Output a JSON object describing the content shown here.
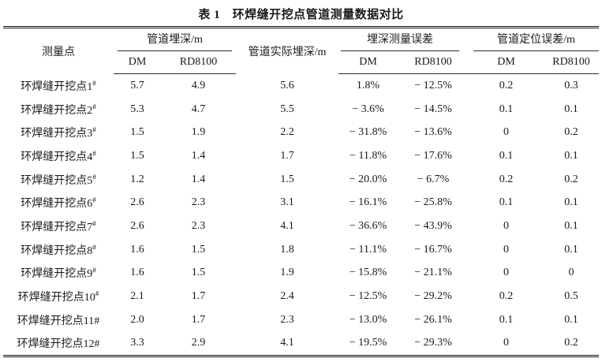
{
  "title": "表 1　环焊缝开挖点管道测量数据对比",
  "table": {
    "header": {
      "point": "测量点",
      "actual": "管道实际埋深/m",
      "groups": [
        "管道埋深/m",
        "埋深测量误差",
        "管道定位误差/m"
      ],
      "sub": [
        "DM",
        "RD8100",
        "DM",
        "RD8100",
        "DM",
        "RD8100"
      ]
    },
    "rows": [
      {
        "point": "环焊缝开挖点1",
        "mark": "#",
        "sup": true,
        "values": [
          "5.7",
          "4.9",
          "5.6",
          "1.8%",
          "− 12.5%",
          "0.2",
          "0.3"
        ]
      },
      {
        "point": "环焊缝开挖点2",
        "mark": "#",
        "sup": true,
        "values": [
          "5.3",
          "4.7",
          "5.5",
          "− 3.6%",
          "− 14.5%",
          "0.1",
          "0.1"
        ]
      },
      {
        "point": "环焊缝开挖点3",
        "mark": "#",
        "sup": true,
        "values": [
          "1.5",
          "1.9",
          "2.2",
          "− 31.8%",
          "− 13.6%",
          "0",
          "0.2"
        ]
      },
      {
        "point": "环焊缝开挖点4",
        "mark": "#",
        "sup": true,
        "values": [
          "1.5",
          "1.4",
          "1.7",
          "− 11.8%",
          "− 17.6%",
          "0.1",
          "0.1"
        ]
      },
      {
        "point": "环焊缝开挖点5",
        "mark": "#",
        "sup": true,
        "values": [
          "1.2",
          "1.4",
          "1.5",
          "− 20.0%",
          "− 6.7%",
          "0.2",
          "0.2"
        ]
      },
      {
        "point": "环焊缝开挖点6",
        "mark": "#",
        "sup": true,
        "values": [
          "2.6",
          "2.3",
          "3.1",
          "− 16.1%",
          "− 25.8%",
          "0.1",
          "0.1"
        ]
      },
      {
        "point": "环焊缝开挖点7",
        "mark": "#",
        "sup": true,
        "values": [
          "2.6",
          "2.3",
          "4.1",
          "− 36.6%",
          "− 43.9%",
          "0",
          "0.1"
        ]
      },
      {
        "point": "环焊缝开挖点8",
        "mark": "#",
        "sup": true,
        "values": [
          "1.6",
          "1.5",
          "1.8",
          "− 11.1%",
          "− 16.7%",
          "0",
          "0.1"
        ]
      },
      {
        "point": "环焊缝开挖点9",
        "mark": "#",
        "sup": true,
        "values": [
          "1.6",
          "1.5",
          "1.9",
          "− 15.8%",
          "− 21.1%",
          "0",
          "0"
        ]
      },
      {
        "point": "环焊缝开挖点10",
        "mark": "#",
        "sup": true,
        "values": [
          "2.1",
          "1.7",
          "2.4",
          "− 12.5%",
          "− 29.2%",
          "0.2",
          "0.5"
        ]
      },
      {
        "point": "环焊缝开挖点11",
        "mark": "#",
        "sup": false,
        "values": [
          "2.0",
          "1.7",
          "2.3",
          "− 13.0%",
          "− 26.1%",
          "0.1",
          "0.1"
        ]
      },
      {
        "point": "环焊缝开挖点12",
        "mark": "#",
        "sup": false,
        "values": [
          "3.3",
          "2.9",
          "4.1",
          "− 19.5%",
          "− 29.3%",
          "0",
          "0.2"
        ]
      }
    ]
  }
}
